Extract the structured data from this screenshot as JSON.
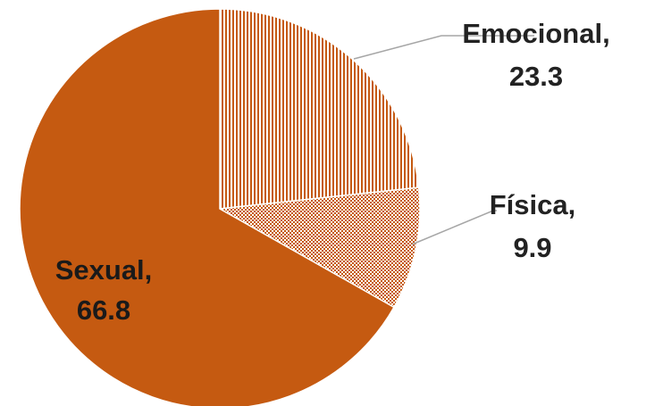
{
  "chart_data": {
    "type": "pie",
    "title": "",
    "slices": [
      {
        "name": "Emocional",
        "value": 23.3,
        "label_line1": "Emocional,",
        "label_line2": "23.3",
        "pattern": "vertical-stripes",
        "color": "#C55A11"
      },
      {
        "name": "Física",
        "value": 9.9,
        "label_line1": "Física,",
        "label_line2": "9.9",
        "pattern": "checker",
        "color": "#C55A11"
      },
      {
        "name": "Sexual",
        "value": 66.8,
        "label_line1": "Sexual,",
        "label_line2": "66.8",
        "pattern": "solid",
        "color": "#C55A11"
      }
    ],
    "start_angle": "12 o'clock",
    "direction": "clockwise",
    "legend": "none",
    "label_position": "outside-with-leader-lines (Sexual inside)"
  }
}
